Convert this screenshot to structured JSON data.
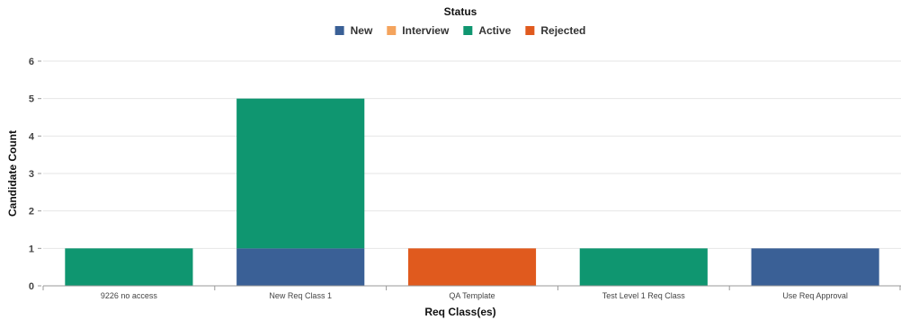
{
  "chart_data": {
    "type": "bar",
    "stacked": true,
    "legend_title": "Status",
    "legend_position": "top",
    "xlabel": "Req Class(es)",
    "ylabel": "Candidate Count",
    "ylim": [
      0,
      6
    ],
    "yticks": [
      0,
      1,
      2,
      3,
      4,
      5,
      6
    ],
    "grid": true,
    "categories": [
      "9226 no access",
      "New Req Class 1",
      "QA Template",
      "Test Level 1 Req Class",
      "Use Req Approval"
    ],
    "series": [
      {
        "name": "New",
        "color": "#3a6096",
        "values": [
          0,
          1,
          0,
          0,
          1
        ]
      },
      {
        "name": "Interview",
        "color": "#f4a45d",
        "values": [
          0,
          0,
          0,
          0,
          0
        ]
      },
      {
        "name": "Active",
        "color": "#0f9670",
        "values": [
          1,
          4,
          0,
          1,
          0
        ]
      },
      {
        "name": "Rejected",
        "color": "#e05a1e",
        "values": [
          0,
          0,
          1,
          0,
          0
        ]
      }
    ]
  }
}
